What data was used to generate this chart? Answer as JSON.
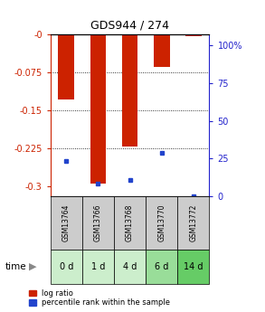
{
  "title": "GDS944 / 274",
  "categories": [
    "GSM13764",
    "GSM13766",
    "GSM13768",
    "GSM13770",
    "GSM13772"
  ],
  "time_labels": [
    "0 d",
    "1 d",
    "4 d",
    "6 d",
    "14 d"
  ],
  "log_ratios": [
    -0.128,
    -0.295,
    -0.222,
    -0.065,
    -0.003
  ],
  "percentile_ranks": [
    22,
    8,
    10,
    27,
    0
  ],
  "ylim_left": [
    -0.32,
    0.0
  ],
  "yticks_left": [
    0.0,
    -0.075,
    -0.15,
    -0.225,
    -0.3
  ],
  "ytick_left_labels": [
    "-0",
    "-0.075",
    "-0.15",
    "-0.225",
    "-0.3"
  ],
  "yticks_right": [
    100,
    75,
    50,
    25,
    0
  ],
  "ytick_right_labels": [
    "100%",
    "75",
    "50",
    "25",
    "0"
  ],
  "bar_color": "#cc2200",
  "dot_color": "#2244cc",
  "bar_width": 0.5,
  "plot_bg": "#ffffff",
  "time_bg_colors": [
    "#cceecc",
    "#cceecc",
    "#cceecc",
    "#99dd99",
    "#66cc66"
  ],
  "sample_bg_color": "#cccccc",
  "legend_items": [
    "log ratio",
    "percentile rank within the sample"
  ]
}
